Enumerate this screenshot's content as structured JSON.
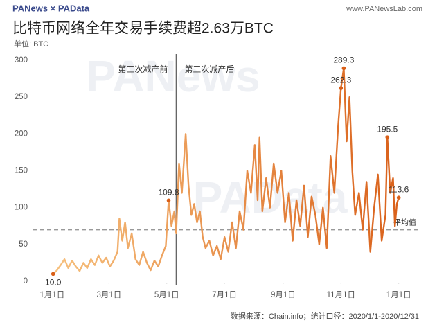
{
  "header": {
    "logo": "PANews × PAData",
    "site": "www.PANewsLab.com"
  },
  "watermarks": [
    "PANews",
    "PAData"
  ],
  "footer": "数据来源：Chain.info；统计口径：2020/1/1-2020/12/31",
  "chart_data": {
    "type": "line",
    "title": "比特币网络全年交易手续费超2.63万BTC",
    "subtitle": "单位: BTC",
    "x": [
      1,
      5,
      9,
      13,
      17,
      21,
      25,
      29,
      33,
      37,
      41,
      45,
      49,
      53,
      57,
      61,
      65,
      69,
      71,
      74,
      77,
      80,
      84,
      88,
      92,
      96,
      100,
      104,
      108,
      112,
      116,
      120,
      123,
      126,
      129,
      131,
      134,
      137,
      141,
      144,
      147,
      150,
      153,
      156,
      159,
      162,
      166,
      170,
      174,
      178,
      182,
      186,
      190,
      194,
      198,
      202,
      206,
      210,
      214,
      217,
      219,
      222,
      226,
      230,
      234,
      238,
      242,
      246,
      250,
      254,
      258,
      262,
      266,
      270,
      274,
      278,
      282,
      286,
      290,
      294,
      298,
      302,
      305,
      308,
      311,
      314,
      317,
      320,
      324,
      328,
      332,
      336,
      340,
      344,
      348,
      352,
      354,
      357,
      360,
      362,
      364,
      366
    ],
    "series": [
      {
        "gradient": [
          "#f8c684",
          "#d95f18"
        ],
        "values": [
          10,
          15,
          22,
          30,
          18,
          28,
          20,
          14,
          25,
          18,
          30,
          22,
          35,
          25,
          32,
          20,
          28,
          40,
          85,
          55,
          80,
          45,
          65,
          30,
          22,
          40,
          25,
          15,
          28,
          20,
          35,
          48,
          109.8,
          75,
          95,
          65,
          160,
          120,
          200,
          130,
          90,
          105,
          80,
          95,
          60,
          45,
          55,
          35,
          48,
          30,
          60,
          40,
          80,
          45,
          95,
          70,
          150,
          120,
          185,
          110,
          195,
          95,
          140,
          100,
          160,
          120,
          150,
          80,
          120,
          55,
          110,
          75,
          130,
          60,
          115,
          90,
          50,
          100,
          45,
          170,
          120,
          210,
          262.3,
          289.3,
          190,
          250,
          150,
          90,
          120,
          70,
          135,
          40,
          100,
          145,
          55,
          90,
          195.5,
          120,
          140,
          75,
          105,
          113.6
        ],
        "value_labels": [
          "10.0",
          null,
          null,
          null,
          null,
          null,
          null,
          null,
          null,
          null,
          null,
          null,
          null,
          null,
          null,
          null,
          null,
          null,
          null,
          null,
          null,
          null,
          null,
          null,
          null,
          null,
          null,
          null,
          null,
          null,
          null,
          null,
          "109.8",
          null,
          null,
          null,
          null,
          null,
          null,
          null,
          null,
          null,
          null,
          null,
          null,
          null,
          null,
          null,
          null,
          null,
          null,
          null,
          null,
          null,
          null,
          null,
          null,
          null,
          null,
          null,
          null,
          null,
          null,
          null,
          null,
          null,
          null,
          null,
          null,
          null,
          null,
          null,
          null,
          null,
          null,
          null,
          null,
          null,
          null,
          null,
          null,
          null,
          "262.3",
          "289.3",
          null,
          null,
          null,
          null,
          null,
          null,
          null,
          null,
          null,
          null,
          null,
          null,
          "195.5",
          null,
          null,
          null,
          null,
          "113.6"
        ]
      }
    ],
    "xlim": [
      -20,
      375
    ],
    "xticks": [
      {
        "value": 0,
        "label": "1月1日"
      },
      {
        "value": 60,
        "label": "3月1日"
      },
      {
        "value": 121,
        "label": "5月1日"
      },
      {
        "value": 182,
        "label": "7月1日"
      },
      {
        "value": 244,
        "label": "9月1日"
      },
      {
        "value": 305,
        "label": "11月1日"
      },
      {
        "value": 366,
        "label": "1月1日"
      }
    ],
    "ylim": [
      0,
      300
    ],
    "yticks": [
      0,
      50,
      100,
      150,
      200,
      250,
      300
    ],
    "average": {
      "value": 70,
      "label": "平均值",
      "color": "#999999"
    },
    "halving": {
      "x": 131,
      "before": "第三次减产前",
      "after": "第三次减产后",
      "color": "#666666"
    }
  }
}
